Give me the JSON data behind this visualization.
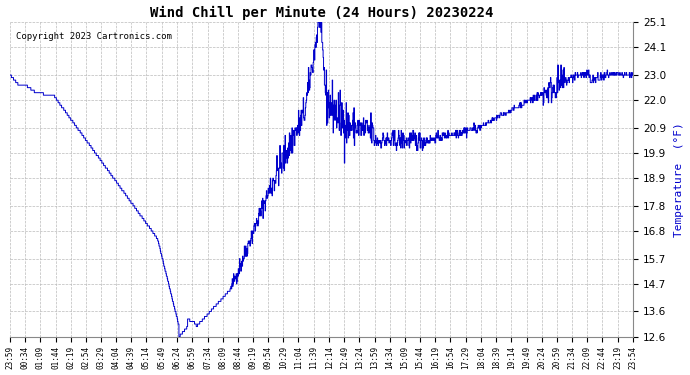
{
  "title": "Wind Chill per Minute (24 Hours) 20230224",
  "ylabel": "Temperature  (°F)",
  "copyright": "Copyright 2023 Cartronics.com",
  "line_color": "#0000cc",
  "background_color": "#ffffff",
  "grid_color": "#bbbbbb",
  "ylim": [
    12.6,
    25.1
  ],
  "yticks": [
    12.6,
    13.6,
    14.7,
    15.7,
    16.8,
    17.8,
    18.9,
    19.9,
    20.9,
    22.0,
    23.0,
    24.1,
    25.1
  ],
  "x_labels": [
    "23:59",
    "00:34",
    "01:09",
    "01:44",
    "02:19",
    "02:54",
    "03:29",
    "04:04",
    "04:39",
    "05:14",
    "05:49",
    "06:24",
    "06:59",
    "07:34",
    "08:09",
    "08:44",
    "09:19",
    "09:54",
    "10:29",
    "11:04",
    "11:39",
    "12:14",
    "12:49",
    "13:24",
    "13:59",
    "14:34",
    "15:09",
    "15:44",
    "16:19",
    "16:54",
    "17:29",
    "18:04",
    "18:39",
    "19:14",
    "19:49",
    "20:24",
    "20:59",
    "21:34",
    "22:09",
    "22:44",
    "23:19",
    "23:54"
  ],
  "figsize": [
    6.9,
    3.75
  ],
  "dpi": 100
}
